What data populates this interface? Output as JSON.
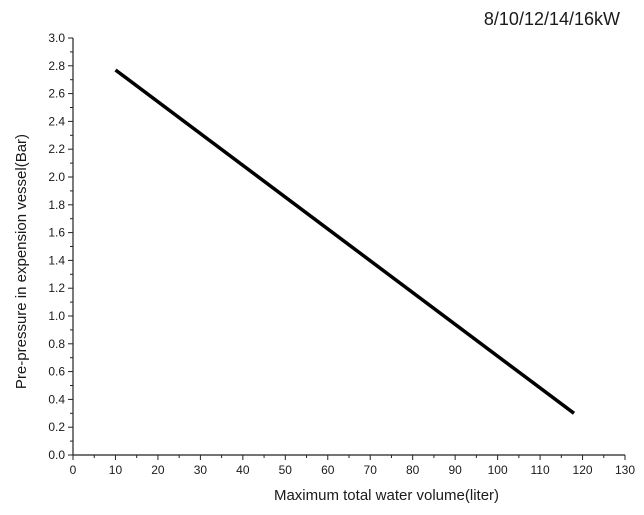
{
  "chart_data": {
    "type": "line",
    "title": "8/10/12/14/16kW",
    "xlabel": "Maximum total water volume(liter)",
    "ylabel": "Pre-pressure in expension vessel(Bar)",
    "xlim": [
      0,
      130
    ],
    "ylim": [
      0.0,
      3.0
    ],
    "xticks": [
      0,
      10,
      20,
      30,
      40,
      50,
      60,
      70,
      80,
      90,
      100,
      110,
      120,
      130
    ],
    "yticks": [
      0.0,
      0.2,
      0.4,
      0.6,
      0.8,
      1.0,
      1.2,
      1.4,
      1.6,
      1.8,
      2.0,
      2.2,
      2.4,
      2.6,
      2.8,
      3.0
    ],
    "ytick_labels": [
      "0.0",
      "0.2",
      "0.4",
      "0.6",
      "0.8",
      "1.0",
      "1.2",
      "1.4",
      "1.6",
      "1.8",
      "2.0",
      "2.2",
      "2.4",
      "2.6",
      "2.8",
      "3.0"
    ],
    "grid": false,
    "series": [
      {
        "color": "#000000",
        "x": [
          10,
          118
        ],
        "y": [
          2.77,
          0.3
        ]
      }
    ]
  }
}
